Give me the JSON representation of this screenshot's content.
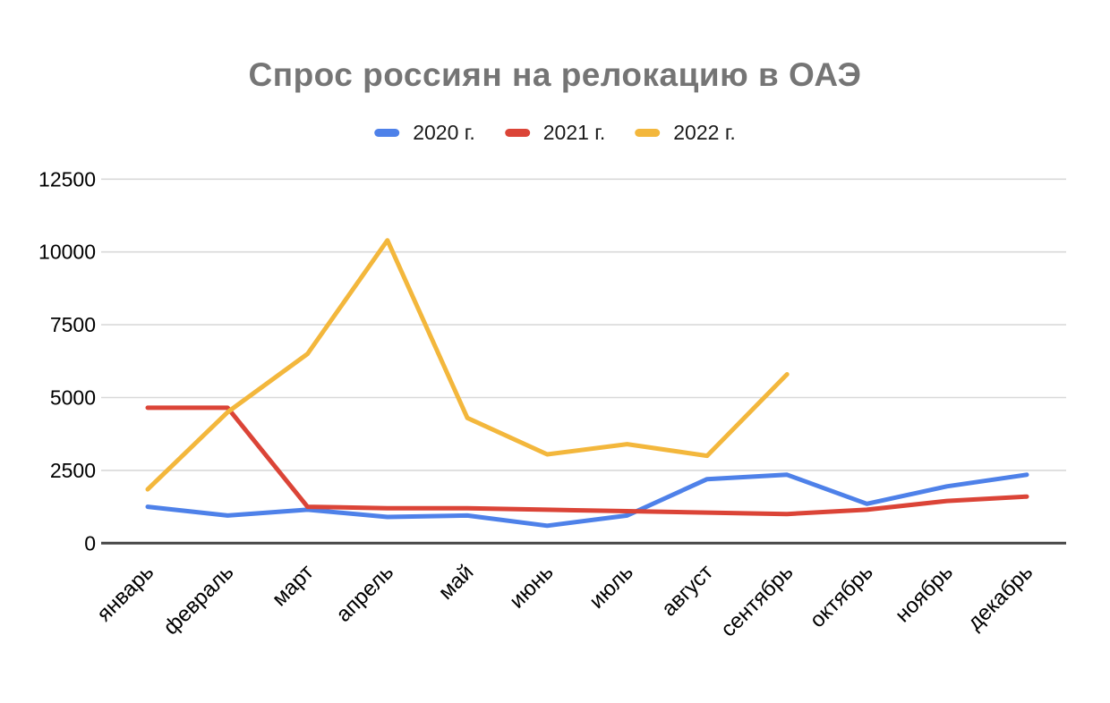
{
  "chart_data": {
    "type": "line",
    "title": "Спрос россиян на релокацию в ОАЭ",
    "xlabel": "",
    "ylabel": "",
    "categories": [
      "январь",
      "февраль",
      "март",
      "апрель",
      "май",
      "июнь",
      "июль",
      "август",
      "сентябрь",
      "октябрь",
      "ноябрь",
      "декабрь"
    ],
    "series": [
      {
        "name": "2020 г.",
        "color": "#4e81e9",
        "values": [
          1250,
          950,
          1150,
          900,
          950,
          600,
          950,
          2200,
          2350,
          1350,
          1950,
          2350
        ]
      },
      {
        "name": "2021 г.",
        "color": "#db4437",
        "values": [
          4650,
          4650,
          1250,
          1200,
          1200,
          1150,
          1100,
          1050,
          1000,
          1150,
          1450,
          1600
        ]
      },
      {
        "name": "2022 г.",
        "color": "#f3b73c",
        "values": [
          1850,
          4500,
          6500,
          10400,
          4300,
          3050,
          3400,
          3000,
          5800,
          null,
          null,
          null
        ]
      }
    ],
    "ylim": [
      0,
      12500
    ],
    "yticks": [
      0,
      2500,
      5000,
      7500,
      10000,
      12500
    ],
    "grid": true,
    "legend_position": "top",
    "colors": {
      "title_text": "#757575",
      "axis_text": "#000000",
      "gridline": "#d9d9d9",
      "zero_axis": "#444444",
      "background": "#ffffff"
    }
  }
}
